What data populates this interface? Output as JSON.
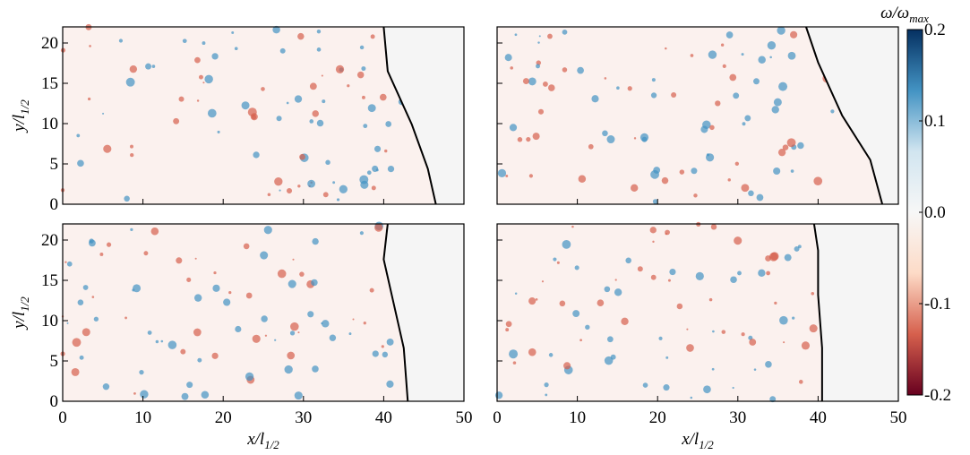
{
  "chart_data": [
    {
      "type": "heatmap",
      "xlim": [
        0,
        50
      ],
      "ylim": [
        0,
        22
      ],
      "xticks": [
        0,
        10,
        20,
        30,
        40,
        50
      ],
      "yticks": [
        0,
        5,
        10,
        15,
        20
      ],
      "xticklabels": false,
      "yticklabels": true,
      "ylabel": {
        "main": "y/l",
        "sub": "1/2"
      }
    },
    {
      "type": "heatmap",
      "xlim": [
        0,
        50
      ],
      "ylim": [
        0,
        22
      ],
      "xticks": [
        0,
        10,
        20,
        30,
        40,
        50
      ],
      "yticks": [
        0,
        5,
        10,
        15,
        20
      ],
      "xticklabels": false,
      "yticklabels": false
    },
    {
      "type": "heatmap",
      "xlim": [
        0,
        50
      ],
      "ylim": [
        0,
        22
      ],
      "xticks": [
        0,
        10,
        20,
        30,
        40,
        50
      ],
      "yticks": [
        0,
        5,
        10,
        15,
        20
      ],
      "xticklabels": true,
      "yticklabels": true,
      "xlabel": {
        "main": "x/l",
        "sub": "1/2"
      },
      "ylabel": {
        "main": "y/l",
        "sub": "1/2"
      }
    },
    {
      "type": "heatmap",
      "xlim": [
        0,
        50
      ],
      "ylim": [
        0,
        22
      ],
      "xticks": [
        0,
        10,
        20,
        30,
        40,
        50
      ],
      "yticks": [
        0,
        5,
        10,
        15,
        20
      ],
      "xticklabels": true,
      "yticklabels": false,
      "xlabel": {
        "main": "x/l",
        "sub": "1/2"
      }
    }
  ],
  "colorbar": {
    "label": {
      "main": "ω/ω",
      "sub": "max"
    },
    "zlim": [
      -0.2,
      0.2
    ],
    "zticks": [
      0.2,
      0.1,
      {
        "value": 0,
        "label": "0.0"
      },
      -0.1,
      -0.2
    ],
    "colormap": [
      "#67001f",
      "#d6604d",
      "#fddbc7",
      "#f7f7f7",
      "#d1e5f0",
      "#4393c3",
      "#053061"
    ]
  }
}
